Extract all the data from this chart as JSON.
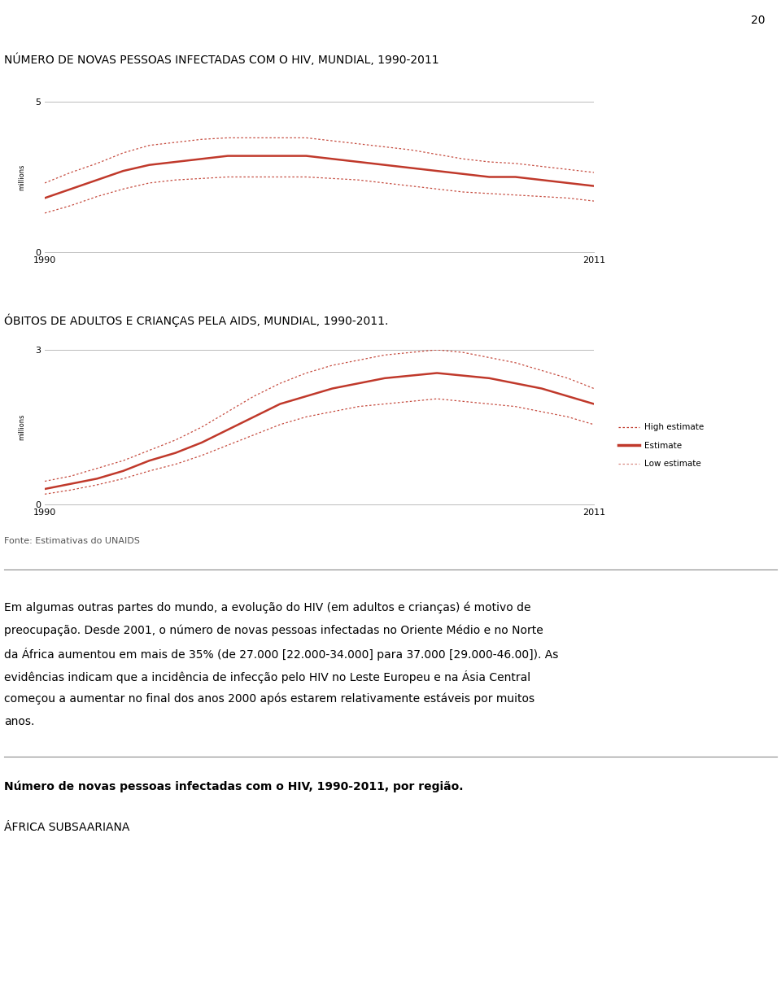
{
  "page_number": "20",
  "chart1_title": "NÚMERO DE NOVAS PESSOAS INFECTADAS COM O HIV, MUNDIAL, 1990-2011",
  "chart2_title": "ÓBITOS DE ADULTOS E CRIANÇAS PELA AIDS, MUNDIAL, 1990-2011.",
  "source": "Fonte: Estimativas do UNAIDS",
  "legend_high": "High estimate",
  "legend_mid": "Estimate",
  "legend_low": "Low estimate",
  "chart1_years": [
    1990,
    1991,
    1992,
    1993,
    1994,
    1995,
    1996,
    1997,
    1998,
    1999,
    2000,
    2001,
    2002,
    2003,
    2004,
    2005,
    2006,
    2007,
    2008,
    2009,
    2010,
    2011
  ],
  "chart1_estimate": [
    1.8,
    2.1,
    2.4,
    2.7,
    2.9,
    3.0,
    3.1,
    3.2,
    3.2,
    3.2,
    3.2,
    3.1,
    3.0,
    2.9,
    2.8,
    2.7,
    2.6,
    2.5,
    2.5,
    2.4,
    2.3,
    2.2
  ],
  "chart1_high": [
    2.3,
    2.65,
    2.95,
    3.3,
    3.55,
    3.65,
    3.75,
    3.8,
    3.8,
    3.8,
    3.8,
    3.7,
    3.6,
    3.5,
    3.4,
    3.25,
    3.1,
    3.0,
    2.95,
    2.85,
    2.75,
    2.65
  ],
  "chart1_low": [
    1.3,
    1.55,
    1.85,
    2.1,
    2.3,
    2.4,
    2.45,
    2.5,
    2.5,
    2.5,
    2.5,
    2.45,
    2.4,
    2.3,
    2.2,
    2.1,
    2.0,
    1.95,
    1.9,
    1.85,
    1.8,
    1.7
  ],
  "chart1_ylim": [
    0,
    5
  ],
  "chart1_yticks": [
    0,
    5
  ],
  "chart2_years": [
    1990,
    1991,
    1992,
    1993,
    1994,
    1995,
    1996,
    1997,
    1998,
    1999,
    2000,
    2001,
    2002,
    2003,
    2004,
    2005,
    2006,
    2007,
    2008,
    2009,
    2010,
    2011
  ],
  "chart2_estimate": [
    0.3,
    0.4,
    0.5,
    0.65,
    0.85,
    1.0,
    1.2,
    1.45,
    1.7,
    1.95,
    2.1,
    2.25,
    2.35,
    2.45,
    2.5,
    2.55,
    2.5,
    2.45,
    2.35,
    2.25,
    2.1,
    1.95
  ],
  "chart2_high": [
    0.45,
    0.55,
    0.7,
    0.85,
    1.05,
    1.25,
    1.5,
    1.8,
    2.1,
    2.35,
    2.55,
    2.7,
    2.8,
    2.9,
    2.95,
    3.0,
    2.95,
    2.85,
    2.75,
    2.6,
    2.45,
    2.25
  ],
  "chart2_low": [
    0.2,
    0.28,
    0.38,
    0.5,
    0.65,
    0.78,
    0.95,
    1.15,
    1.35,
    1.55,
    1.7,
    1.8,
    1.9,
    1.95,
    2.0,
    2.05,
    2.0,
    1.95,
    1.9,
    1.8,
    1.7,
    1.55
  ],
  "chart2_ylim": [
    0,
    3
  ],
  "chart2_yticks": [
    0,
    3
  ],
  "line_color": "#c0392b",
  "ylabel": "millions",
  "body_line1": "Em algumas outras partes do mundo, a evolução do HIV (em adultos e crianças) é motivo de",
  "body_line2": "preocupação. Desde 2001, o número de novas pessoas infectadas no Oriente Médio e no Norte",
  "body_line3": "da África aumentou em mais de 35% (de 27.000 [22.000-34.000] para 37.000 [29.000-46.00]). As",
  "body_line4": "evidências indicam que a incidência de infecção pelo HIV no Leste Europeu e na Ásia Central",
  "body_line5": "começou a aumentar no final dos anos 2000 após estarem relativamente estáveis por muitos",
  "body_line6": "anos.",
  "section_title": "Número de novas pessoas infectadas com o HIV, 1990-2011, por região.",
  "region_title": "ÁFRICA SUBSAARIANA"
}
